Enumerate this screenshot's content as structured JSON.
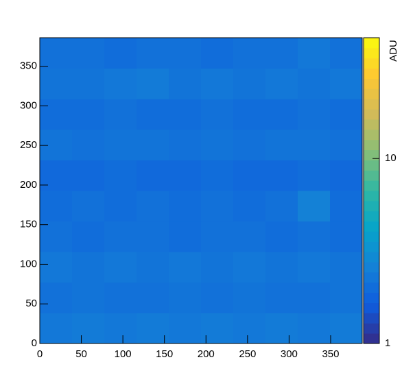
{
  "chart_data": {
    "type": "heatmap",
    "xlim": [
      0,
      388
    ],
    "ylim": [
      0,
      386
    ],
    "xticks": [
      0,
      50,
      100,
      150,
      200,
      250,
      300,
      350
    ],
    "yticks": [
      0,
      50,
      100,
      150,
      200,
      250,
      300,
      350
    ],
    "z": [
      [
        2.3,
        2.4,
        2.3,
        2.4,
        2.3,
        2.4,
        2.3,
        2.4,
        2.3,
        2.4
      ],
      [
        2.1,
        2.2,
        2.1,
        2.1,
        2.2,
        2.1,
        2.2,
        2.1,
        2.1,
        2.2
      ],
      [
        2.3,
        2.2,
        2.3,
        2.2,
        2.3,
        2.2,
        2.3,
        2.2,
        2.3,
        2.2
      ],
      [
        2.1,
        2.0,
        2.1,
        2.1,
        2.0,
        2.1,
        2.1,
        2.0,
        2.1,
        2.0
      ],
      [
        2.0,
        2.1,
        2.0,
        2.1,
        2.0,
        2.1,
        2.0,
        2.1,
        2.6,
        2.0
      ],
      [
        1.9,
        1.9,
        2.0,
        1.9,
        1.9,
        2.0,
        1.9,
        1.9,
        2.0,
        1.9
      ],
      [
        2.2,
        2.1,
        2.2,
        2.2,
        2.1,
        2.2,
        2.1,
        2.2,
        2.2,
        2.1
      ],
      [
        2.0,
        2.0,
        2.1,
        2.0,
        2.0,
        2.1,
        2.0,
        2.0,
        2.1,
        2.0
      ],
      [
        2.2,
        2.2,
        2.3,
        2.4,
        2.2,
        2.3,
        2.2,
        2.3,
        2.2,
        2.3
      ],
      [
        2.1,
        2.1,
        2.0,
        2.1,
        2.1,
        2.0,
        2.1,
        2.1,
        2.3,
        2.1
      ]
    ],
    "zlim": [
      1,
      45
    ],
    "zscale": "log",
    "zticks": [
      1,
      10
    ],
    "zlabel": "ADU"
  }
}
